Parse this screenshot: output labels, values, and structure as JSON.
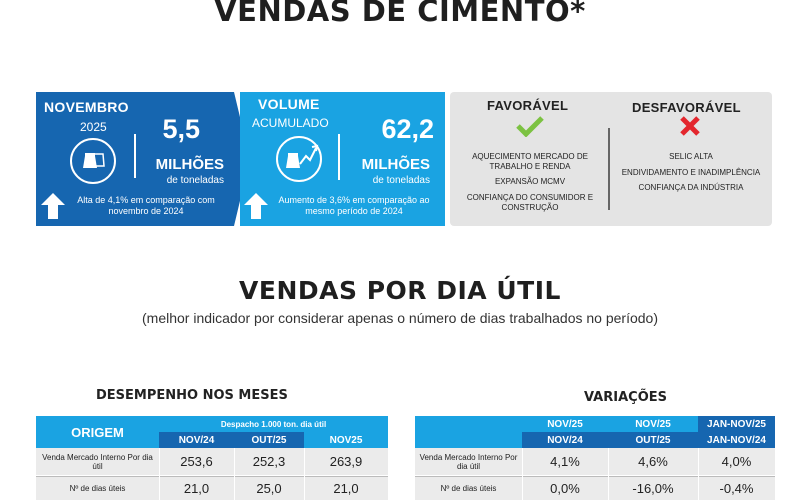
{
  "page": {
    "title": "VENDAS DE CIMENTO*"
  },
  "kpi_month": {
    "label": "NOVEMBRO",
    "year": "2025",
    "value": "5,5",
    "unit": "MILHÕES",
    "unit_sub": "de toneladas",
    "note": "Alta de 4,1% em comparação com novembro de 2024",
    "icon": "cement-bag-icon",
    "arrow": "up-arrow-icon"
  },
  "kpi_volume": {
    "label": "VOLUME",
    "sub": "ACUMULADO",
    "value": "62,2",
    "unit": "MILHÕES",
    "unit_sub": "de toneladas",
    "note": "Aumento de 3,6% em comparação ao mesmo período de 2024",
    "icon": "cement-growth-icon",
    "arrow": "up-arrow-icon"
  },
  "factors": {
    "favorable_title": "FAVORÁVEL",
    "favorable_icon": "check-icon",
    "favorable_items": [
      "AQUECIMENTO MERCADO DE TRABALHO E RENDA",
      "EXPANSÃO MCMV",
      "CONFIANÇA DO CONSUMIDOR E CONSTRUÇÃO"
    ],
    "unfavorable_title": "DESFAVORÁVEL",
    "unfavorable_icon": "cross-icon",
    "unfavorable_items": [
      "SELIC ALTA",
      "ENDIVIDAMENTO E INADIMPLÊNCIA",
      "CONFIANÇA DA INDÚSTRIA"
    ],
    "colors": {
      "check": "#7cc242",
      "cross": "#e3262d"
    }
  },
  "section2": {
    "title": "VENDAS POR DIA ÚTIL",
    "caption": "(melhor indicador por considerar apenas o número de dias trabalhados no período)"
  },
  "perf_table": {
    "title": "DESEMPENHO NOS MESES",
    "origin_label": "ORIGEM",
    "group_header": "Despacho 1.000 ton. dia útil",
    "columns": [
      "NOV/24",
      "OUT/25",
      "NOV25"
    ],
    "rows": [
      {
        "label": "Venda Mercado Interno Por dia útil",
        "values": [
          "253,6",
          "252,3",
          "263,9"
        ]
      },
      {
        "label": "Nº de dias úteis",
        "values": [
          "21,0",
          "25,0",
          "21,0"
        ]
      }
    ]
  },
  "var_table": {
    "title": "VARIAÇÕES",
    "columns": [
      {
        "top": "NOV/25",
        "bottom": "NOV/24"
      },
      {
        "top": "NOV/25",
        "bottom": "OUT/25"
      },
      {
        "top": "JAN-NOV/25",
        "bottom": "JAN-NOV/24"
      }
    ],
    "rows": [
      {
        "label": "Venda Mercado Interno Por dia útil",
        "values": [
          "4,1%",
          "4,6%",
          "4,0%"
        ]
      },
      {
        "label": "Nº de dias úteis",
        "values": [
          "0,0%",
          "-16,0%",
          "-0,4%"
        ]
      }
    ]
  },
  "colors": {
    "dark_blue": "#1666b0",
    "light_blue": "#1aa3e2",
    "gray_box": "#e4e4e4"
  }
}
